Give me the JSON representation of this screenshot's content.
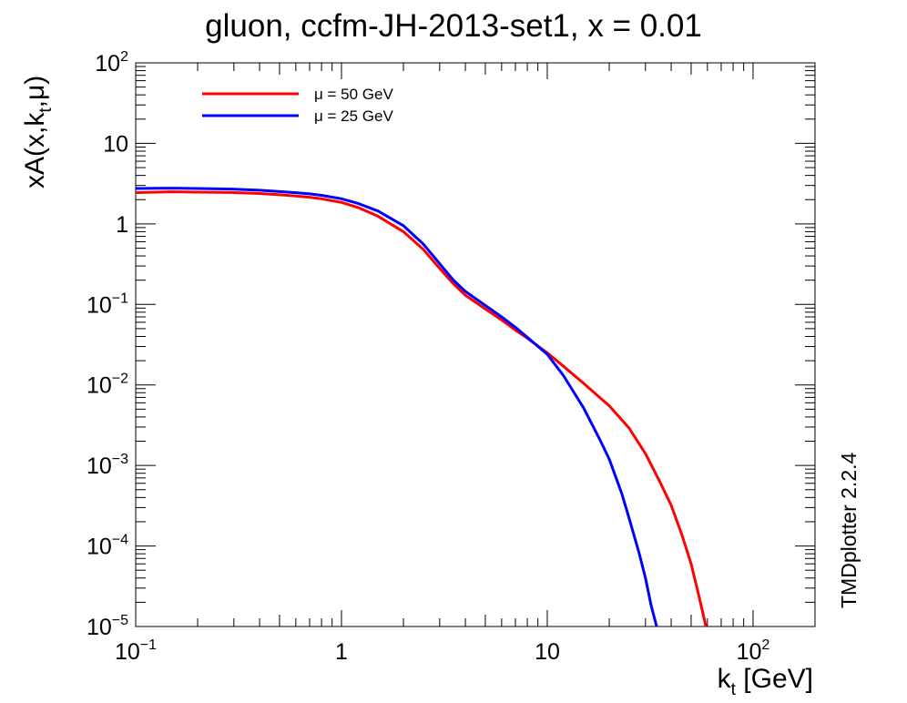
{
  "chart_data": {
    "type": "line",
    "title": "gluon, ccfm-JH-2013-set1, x = 0.01",
    "xlabel": {
      "main": "k",
      "sub": "t",
      "rest": " [GeV]"
    },
    "ylabel": {
      "pre": "xA(x,k",
      "sub": "t",
      "post": ",μ)"
    },
    "x_scale": "log",
    "y_scale": "log",
    "xlim": [
      0.1,
      200
    ],
    "ylim": [
      1e-05,
      100
    ],
    "x_ticks": [
      {
        "value": 0.1,
        "base": "10",
        "exp": "−1"
      },
      {
        "value": 1,
        "base": "1",
        "exp": ""
      },
      {
        "value": 10,
        "base": "10",
        "exp": ""
      },
      {
        "value": 100,
        "base": "10",
        "exp": "2"
      }
    ],
    "y_ticks": [
      {
        "value": 100,
        "base": "10",
        "exp": "2"
      },
      {
        "value": 10,
        "base": "10",
        "exp": ""
      },
      {
        "value": 1,
        "base": "1",
        "exp": ""
      },
      {
        "value": 0.1,
        "base": "10",
        "exp": "−1"
      },
      {
        "value": 0.01,
        "base": "10",
        "exp": "−2"
      },
      {
        "value": 0.001,
        "base": "10",
        "exp": "−3"
      },
      {
        "value": 0.0001,
        "base": "10",
        "exp": "−4"
      },
      {
        "value": 1e-05,
        "base": "10",
        "exp": "−5"
      }
    ],
    "grid": false,
    "legend_position": "top-left",
    "series": [
      {
        "name": "μ = 50 GeV",
        "color": "#ff0000",
        "points": [
          [
            0.1,
            2.45
          ],
          [
            0.15,
            2.5
          ],
          [
            0.2,
            2.48
          ],
          [
            0.3,
            2.45
          ],
          [
            0.4,
            2.38
          ],
          [
            0.5,
            2.3
          ],
          [
            0.6,
            2.22
          ],
          [
            0.7,
            2.14
          ],
          [
            0.8,
            2.05
          ],
          [
            1.0,
            1.85
          ],
          [
            1.2,
            1.6
          ],
          [
            1.5,
            1.25
          ],
          [
            2.0,
            0.8
          ],
          [
            2.5,
            0.48
          ],
          [
            3.0,
            0.28
          ],
          [
            3.5,
            0.18
          ],
          [
            4.0,
            0.13
          ],
          [
            5.0,
            0.088
          ],
          [
            6.0,
            0.064
          ],
          [
            7.0,
            0.048
          ],
          [
            8.0,
            0.038
          ],
          [
            10.0,
            0.025
          ],
          [
            12.0,
            0.017
          ],
          [
            15.0,
            0.0105
          ],
          [
            20.0,
            0.0055
          ],
          [
            25.0,
            0.0029
          ],
          [
            30.0,
            0.0014
          ],
          [
            35.0,
            0.00065
          ],
          [
            40.0,
            0.00032
          ],
          [
            45.0,
            0.00014
          ],
          [
            50.0,
            6e-05
          ],
          [
            55.0,
            2.2e-05
          ],
          [
            59.0,
            1e-05
          ]
        ]
      },
      {
        "name": "μ = 25 GeV",
        "color": "#0000ff",
        "points": [
          [
            0.1,
            2.75
          ],
          [
            0.15,
            2.78
          ],
          [
            0.2,
            2.75
          ],
          [
            0.3,
            2.7
          ],
          [
            0.4,
            2.62
          ],
          [
            0.5,
            2.52
          ],
          [
            0.6,
            2.44
          ],
          [
            0.7,
            2.36
          ],
          [
            0.8,
            2.26
          ],
          [
            1.0,
            2.05
          ],
          [
            1.2,
            1.8
          ],
          [
            1.5,
            1.45
          ],
          [
            2.0,
            0.95
          ],
          [
            2.5,
            0.56
          ],
          [
            3.0,
            0.32
          ],
          [
            3.5,
            0.2
          ],
          [
            4.0,
            0.145
          ],
          [
            5.0,
            0.097
          ],
          [
            6.0,
            0.07
          ],
          [
            7.0,
            0.052
          ],
          [
            8.0,
            0.039
          ],
          [
            10.0,
            0.024
          ],
          [
            12.0,
            0.013
          ],
          [
            15.0,
            0.0052
          ],
          [
            18.0,
            0.0021
          ],
          [
            20.0,
            0.0012
          ],
          [
            23.0,
            0.00045
          ],
          [
            25.0,
            0.00022
          ],
          [
            28.0,
            8e-05
          ],
          [
            30.0,
            4e-05
          ],
          [
            32.0,
            1.8e-05
          ],
          [
            34.0,
            1e-05
          ]
        ]
      }
    ]
  },
  "watermark": "TMDplotter 2.2.4"
}
